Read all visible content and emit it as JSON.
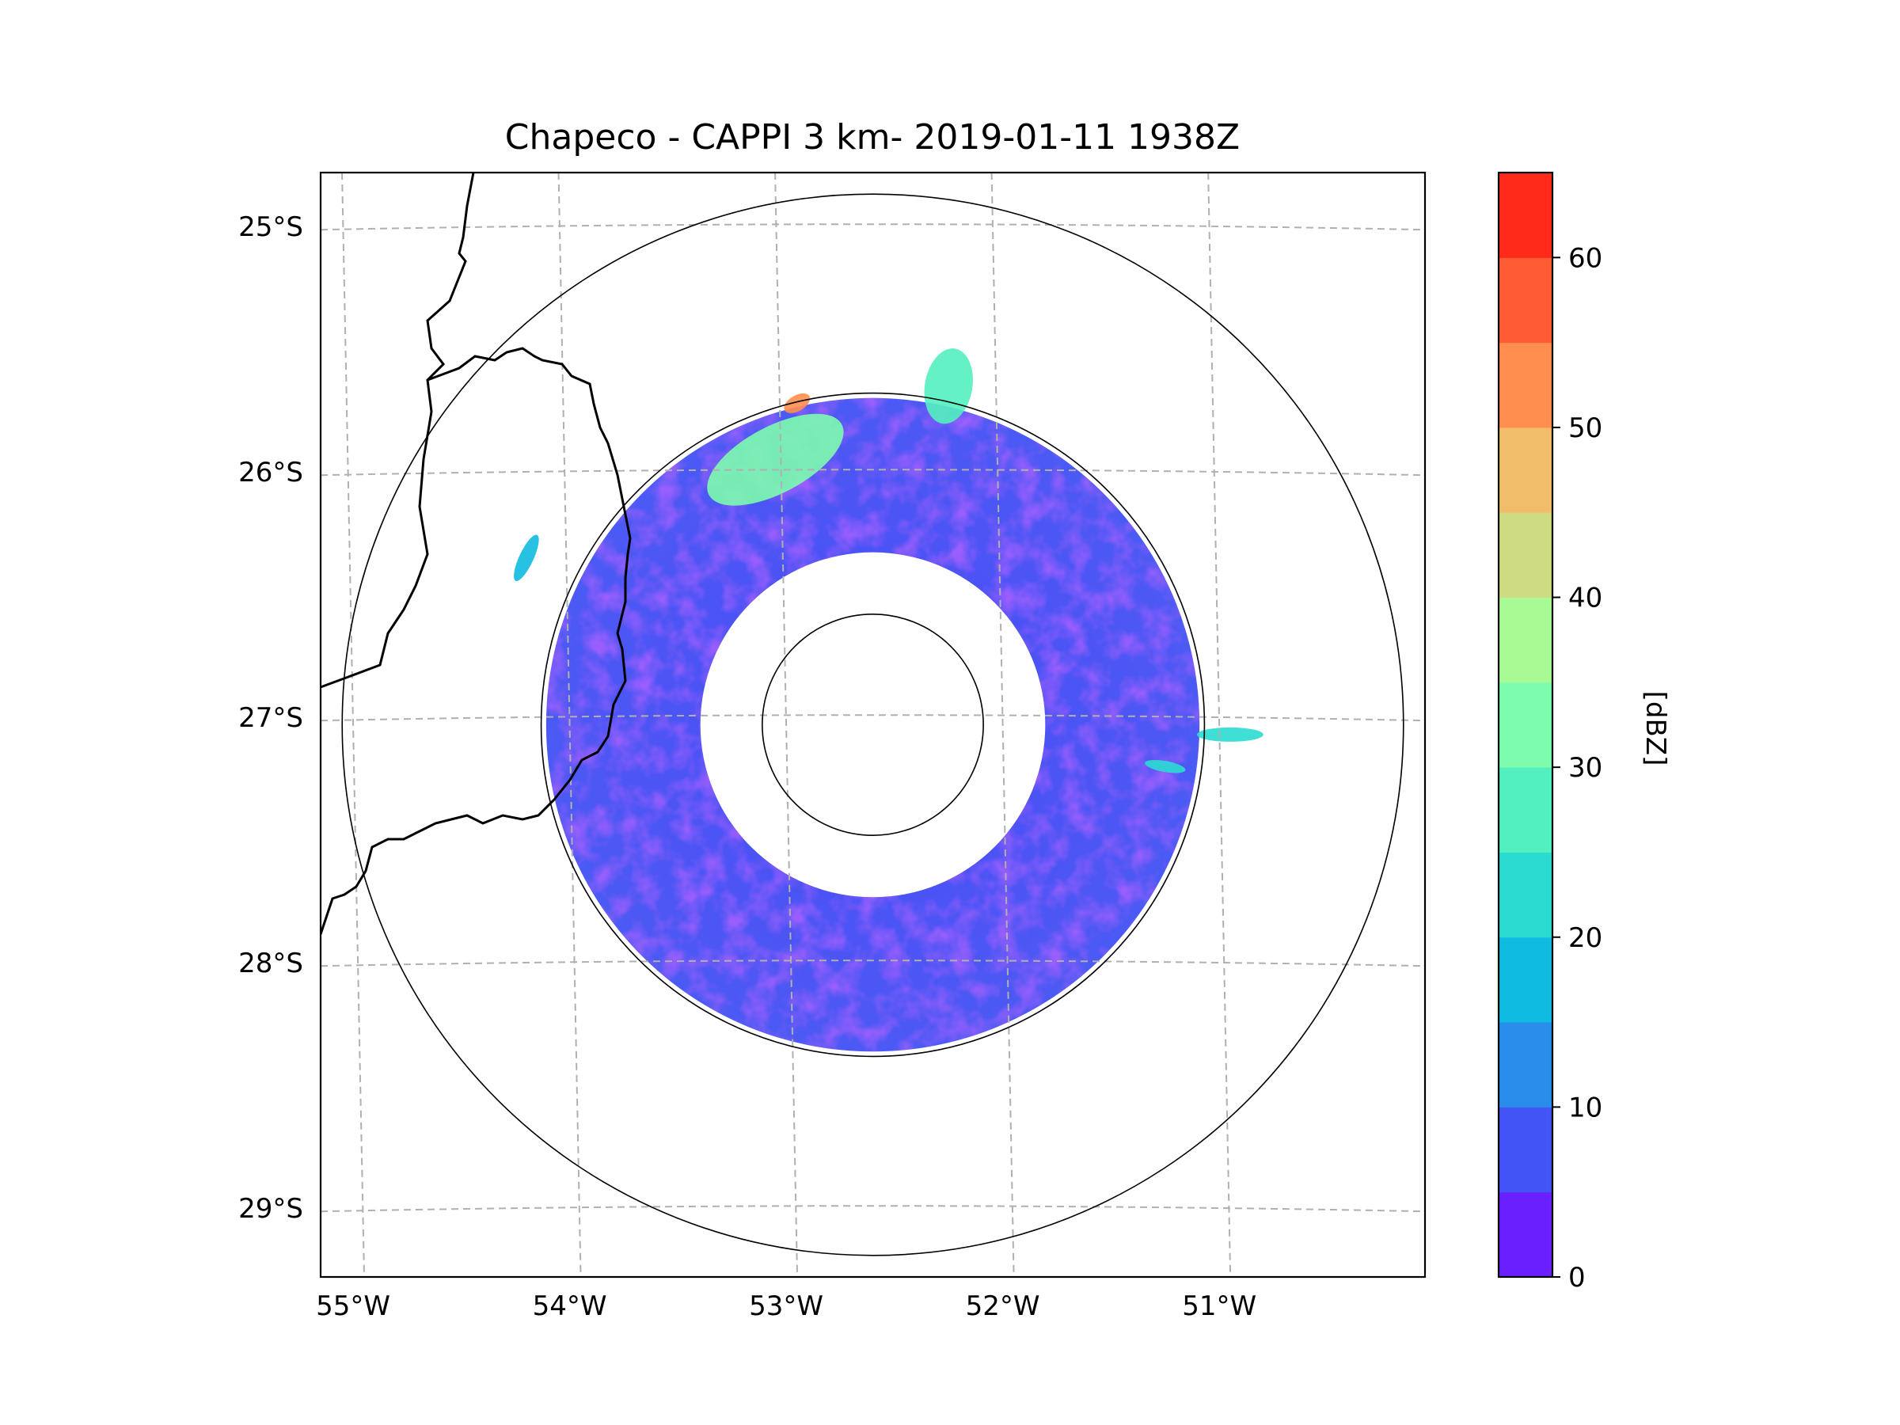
{
  "chart_data": {
    "type": "heatmap",
    "subtype": "radar-ppi-map",
    "title": "Chapeco - CAPPI 3 km- 2019-01-11 1938Z",
    "xlabel": "",
    "ylabel": "",
    "x_ticks": [
      {
        "value": -55,
        "label": "55°W"
      },
      {
        "value": -54,
        "label": "54°W"
      },
      {
        "value": -53,
        "label": "53°W"
      },
      {
        "value": -52,
        "label": "52°W"
      },
      {
        "value": -51,
        "label": "51°W"
      }
    ],
    "y_ticks": [
      {
        "value": -25,
        "label": "25°S"
      },
      {
        "value": -26,
        "label": "26°S"
      },
      {
        "value": -27,
        "label": "27°S"
      },
      {
        "value": -28,
        "label": "28°S"
      },
      {
        "value": -29,
        "label": "29°S"
      }
    ],
    "xlim": [
      -55.15,
      -50.05
    ],
    "ylim": [
      -29.28,
      -24.78
    ],
    "grid": true,
    "radar_site": {
      "lon": -52.6,
      "lat": -27.03
    },
    "range_rings_km": [
      50,
      150,
      240
    ],
    "colorbar": {
      "label": "[dBZ]",
      "min": 0,
      "max": 65,
      "ticks": [
        0,
        10,
        20,
        30,
        40,
        50,
        60
      ],
      "levels": [
        {
          "from": 0,
          "to": 5,
          "color": "#6a1ffe"
        },
        {
          "from": 5,
          "to": 10,
          "color": "#4254f5"
        },
        {
          "from": 10,
          "to": 15,
          "color": "#2a8ceb"
        },
        {
          "from": 15,
          "to": 20,
          "color": "#0fbbe0"
        },
        {
          "from": 20,
          "to": 25,
          "color": "#2bdbd2"
        },
        {
          "from": 25,
          "to": 30,
          "color": "#52f0bf"
        },
        {
          "from": 30,
          "to": 35,
          "color": "#7dfcae"
        },
        {
          "from": 35,
          "to": 40,
          "color": "#a8fa94"
        },
        {
          "from": 40,
          "to": 45,
          "color": "#cfdb80"
        },
        {
          "from": 45,
          "to": 50,
          "color": "#f2bd6a"
        },
        {
          "from": 50,
          "to": 55,
          "color": "#ff8e4f"
        },
        {
          "from": 55,
          "to": 60,
          "color": "#ff5b34"
        },
        {
          "from": 60,
          "to": 65,
          "color": "#ff2a1a"
        }
      ]
    },
    "echo_regions": [
      {
        "name": "nw-convective-cell",
        "lon": -53.05,
        "lat": -25.95,
        "dbz": 30
      },
      {
        "name": "nw-cell-core",
        "lon": -52.95,
        "lat": -25.72,
        "dbz": 50
      },
      {
        "name": "north-cell",
        "lon": -52.25,
        "lat": -25.65,
        "dbz": 28
      },
      {
        "name": "east-line-1",
        "lon": -50.95,
        "lat": -27.07,
        "dbz": 22
      },
      {
        "name": "east-line-2",
        "lon": -51.25,
        "lat": -27.2,
        "dbz": 20
      },
      {
        "name": "west-strip",
        "lon": -54.2,
        "lat": -26.35,
        "dbz": 18
      }
    ]
  }
}
